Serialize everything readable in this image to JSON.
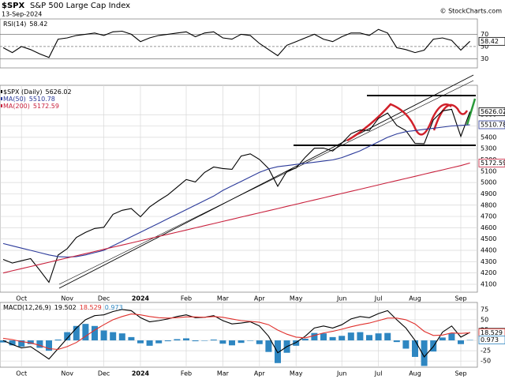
{
  "header": {
    "symbol": "$SPX",
    "name": "S&P 500 Large Cap Index",
    "date": "13-Sep-2024",
    "source": "© StockCharts.com"
  },
  "chart_data": [
    {
      "type": "line",
      "name": "RSI(14)",
      "ylim": [
        15,
        95
      ],
      "yticks": [
        30,
        50,
        70
      ],
      "color": "#000000",
      "values": [
        48,
        40,
        50,
        45,
        38,
        32,
        62,
        64,
        68,
        70,
        72,
        68,
        74,
        75,
        70,
        58,
        64,
        68,
        70,
        72,
        74,
        66,
        72,
        74,
        64,
        62,
        70,
        68,
        55,
        45,
        35,
        52,
        58,
        64,
        70,
        62,
        58,
        66,
        72,
        72,
        68,
        78,
        72,
        48,
        45,
        40,
        44,
        62,
        64,
        60,
        44,
        58.42
      ]
    },
    {
      "type": "line",
      "ylim": [
        4030,
        5860
      ],
      "yticks": [
        4100,
        4200,
        4300,
        4400,
        4500,
        4600,
        4700,
        4800,
        4900,
        5000,
        5100,
        5200,
        5300,
        5400,
        5500,
        5600
      ],
      "grid": true,
      "categories": [
        null,
        null,
        "Oct",
        null,
        null,
        null,
        null,
        "Nov",
        null,
        null,
        null,
        "Dec",
        null,
        null,
        null,
        "2024",
        null,
        null,
        null,
        null,
        "Feb",
        null,
        null,
        null,
        "Mar",
        null,
        null,
        null,
        "Apr",
        null,
        null,
        null,
        "May",
        null,
        null,
        null,
        null,
        "Jun",
        null,
        null,
        null,
        "Jul",
        null,
        null,
        null,
        "Aug",
        null,
        null,
        null,
        null,
        "Sep",
        null
      ],
      "series": [
        {
          "name": "$SPX (Daily)",
          "color": "#000000",
          "values": [
            4320,
            4288,
            4308,
            4327,
            4224,
            4117,
            4358,
            4415,
            4514,
            4559,
            4594,
            4604,
            4719,
            4754,
            4770,
            4697,
            4784,
            4840,
            4891,
            4958,
            5027,
            5005,
            5089,
            5137,
            5124,
            5117,
            5234,
            5254,
            5204,
            5123,
            4967,
            5100,
            5128,
            5223,
            5303,
            5305,
            5278,
            5347,
            5432,
            5465,
            5460,
            5567,
            5615,
            5505,
            5459,
            5346,
            5344,
            5554,
            5634,
            5648,
            5408,
            5626.02
          ]
        },
        {
          "name": "MA(50)",
          "color": "#2b3a9a",
          "values": [
            4460,
            4440,
            4420,
            4400,
            4380,
            4360,
            4345,
            4340,
            4345,
            4360,
            4380,
            4400,
            4440,
            4480,
            4520,
            4560,
            4600,
            4640,
            4680,
            4720,
            4760,
            4800,
            4840,
            4880,
            4930,
            4970,
            5010,
            5050,
            5090,
            5120,
            5140,
            5150,
            5160,
            5170,
            5180,
            5190,
            5200,
            5220,
            5250,
            5280,
            5320,
            5360,
            5400,
            5430,
            5450,
            5460,
            5470,
            5480,
            5490,
            5500,
            5505,
            5510.78
          ]
        },
        {
          "name": "MA(200)",
          "color": "#c8203c",
          "values": [
            4200,
            4219,
            4238,
            4257,
            4276,
            4295,
            4314,
            4333,
            4352,
            4371,
            4390,
            4409,
            4428,
            4447,
            4466,
            4485,
            4504,
            4523,
            4542,
            4561,
            4580,
            4599,
            4618,
            4637,
            4656,
            4675,
            4694,
            4713,
            4732,
            4751,
            4770,
            4789,
            4808,
            4827,
            4846,
            4865,
            4884,
            4903,
            4922,
            4941,
            4960,
            4979,
            4998,
            5017,
            5036,
            5055,
            5074,
            5093,
            5112,
            5131,
            5150,
            5172.59
          ]
        }
      ]
    },
    {
      "type": "line",
      "name": "MACD(12,26,9)",
      "ylim": [
        -65,
        92
      ],
      "yticks": [
        -50,
        -25,
        0,
        25,
        50,
        75
      ],
      "grid": true,
      "categories": [
        null,
        null,
        "Oct",
        null,
        null,
        null,
        null,
        "Nov",
        null,
        null,
        null,
        "Dec",
        null,
        null,
        null,
        "2024",
        null,
        null,
        null,
        null,
        "Feb",
        null,
        null,
        null,
        "Mar",
        null,
        null,
        null,
        "Apr",
        null,
        null,
        null,
        "May",
        null,
        null,
        null,
        null,
        "Jun",
        null,
        null,
        null,
        "Jul",
        null,
        null,
        null,
        "Aug",
        null,
        null,
        null,
        null,
        "Sep",
        null
      ],
      "series": [
        {
          "color": "#000000",
          "values": [
            0,
            -10,
            -18,
            -15,
            -30,
            -45,
            -20,
            5,
            30,
            50,
            60,
            62,
            70,
            75,
            72,
            55,
            45,
            48,
            52,
            58,
            62,
            55,
            56,
            60,
            48,
            40,
            42,
            45,
            35,
            10,
            -30,
            -15,
            -5,
            10,
            30,
            35,
            30,
            38,
            52,
            58,
            55,
            65,
            72,
            50,
            30,
            0,
            -40,
            -15,
            20,
            35,
            8,
            19.502
          ]
        },
        {
          "color": "#e0302c",
          "values": [
            5,
            2,
            -3,
            -6,
            -12,
            -20,
            -22,
            -15,
            -5,
            10,
            25,
            38,
            50,
            58,
            64,
            62,
            58,
            55,
            54,
            55,
            57,
            57,
            56,
            58,
            56,
            52,
            48,
            46,
            44,
            38,
            25,
            15,
            8,
            6,
            12,
            18,
            22,
            27,
            33,
            38,
            42,
            48,
            54,
            54,
            50,
            40,
            22,
            12,
            13,
            18,
            17,
            18.529
          ]
        },
        {
          "color": "#2e86c1",
          "type": "bar",
          "values": [
            -5,
            -12,
            -15,
            -9,
            -18,
            -25,
            2,
            20,
            35,
            40,
            35,
            24,
            20,
            17,
            8,
            -7,
            -13,
            -7,
            -2,
            3,
            5,
            -2,
            0,
            2,
            -8,
            -12,
            -6,
            -1,
            -9,
            -28,
            -55,
            -30,
            -13,
            4,
            18,
            17,
            8,
            11,
            19,
            20,
            13,
            17,
            18,
            -4,
            -20,
            -40,
            -62,
            -27,
            7,
            17,
            -9,
            0.973
          ]
        }
      ]
    }
  ]
}
